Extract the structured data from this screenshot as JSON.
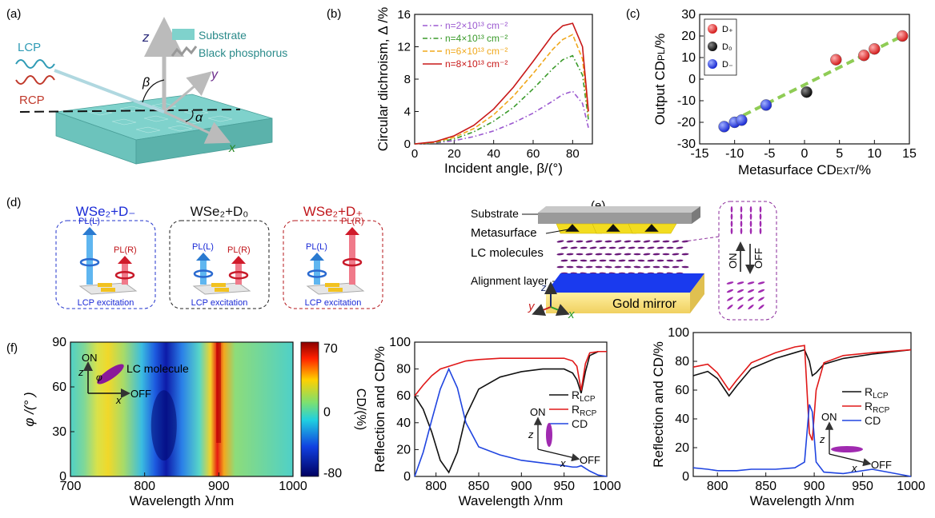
{
  "panel_labels": {
    "a": "(a)",
    "b": "(b)",
    "c": "(c)",
    "d": "(d)",
    "e": "(e)",
    "f": "(f)"
  },
  "panel_a": {
    "legend_substrate": "Substrate",
    "legend_bp": "Black phosphorus",
    "lcp": "LCP",
    "rcp": "RCP",
    "axis_z": "z",
    "axis_y": "y",
    "axis_x": "x",
    "angle_beta": "β",
    "angle_alpha": "α",
    "colors": {
      "substrate_top": "#7fd2cc",
      "substrate_front": "#5bb7b0",
      "lcp": "#2f9bb5",
      "rcp": "#c0392b"
    }
  },
  "panel_d": {
    "groups": [
      {
        "title": "WSe₂+D₋",
        "title_color": "#1a2ad6",
        "border": "#2233cc",
        "pl_l": "PL(L)",
        "pl_r": "PL(R)",
        "exc": "LCP excitation",
        "big": "L"
      },
      {
        "title": "WSe₂+D₀",
        "title_color": "#111111",
        "border": "#222222",
        "pl_l": "PL(L)",
        "pl_r": "PL(R)",
        "exc": "LCP excitation",
        "big": "none"
      },
      {
        "title": "WSe₂+D₊",
        "title_color": "#c0161b",
        "border": "#b4151a",
        "pl_l": "PL(L)",
        "pl_r": "PL(R)",
        "exc": "LCP excitation",
        "big": "R"
      }
    ]
  },
  "panel_e": {
    "substrate": "Substrate",
    "metasurface": "Metasurface",
    "lc": "LC molecules",
    "alignment": "Alignment layer",
    "mirror": "Gold mirror",
    "on": "ON",
    "off": "OFF",
    "axis_z": "z",
    "axis_y": "y",
    "axis_x": "x"
  },
  "chart_data": [
    {
      "id": "b",
      "type": "line",
      "xlabel": "Incident angle, β/(°)",
      "ylabel": "Circular dichroism, Δ /%",
      "xlim": [
        0,
        90
      ],
      "ylim": [
        0,
        16
      ],
      "xticks": [
        0,
        20,
        40,
        60,
        80
      ],
      "yticks": [
        0,
        4,
        8,
        12,
        16
      ],
      "legend_position": "top-left",
      "x": [
        0,
        10,
        20,
        30,
        40,
        50,
        60,
        70,
        75,
        80,
        85,
        88
      ],
      "series": [
        {
          "name": "n=2×10¹³ cm⁻²",
          "color": "#9b59d0",
          "dash": "6,3,1.5,3",
          "values": [
            0,
            0.1,
            0.4,
            0.9,
            1.6,
            2.6,
            3.8,
            5.3,
            6.1,
            6.5,
            5.0,
            2.0
          ]
        },
        {
          "name": "n=4×10¹³ cm⁻²",
          "color": "#3a9a2a",
          "dash": "6,3,1.5,3",
          "values": [
            0,
            0.15,
            0.6,
            1.5,
            2.8,
            4.5,
            6.8,
            9.3,
            10.4,
            10.9,
            8.5,
            3.0
          ]
        },
        {
          "name": "n=6×10¹³ cm⁻²",
          "color": "#f0a81c",
          "dash": "6,3",
          "values": [
            0,
            0.2,
            0.8,
            1.9,
            3.6,
            5.9,
            8.7,
            11.7,
            12.9,
            13.5,
            10.5,
            3.5
          ]
        },
        {
          "name": "n=8×10¹³ cm⁻²",
          "color": "#c81818",
          "dash": "",
          "values": [
            0,
            0.25,
            1.0,
            2.3,
            4.3,
            7.0,
            10.2,
            13.5,
            14.6,
            14.9,
            12.0,
            4.0
          ]
        }
      ]
    },
    {
      "id": "c",
      "type": "scatter",
      "xlabel": "Metasurface CD",
      "xlabel_sub": "EXT",
      "xlabel_tail": "/%",
      "ylabel": "Output CD",
      "ylabel_sub": "PL",
      "ylabel_tail": "/%",
      "xlim": [
        -15,
        15
      ],
      "ylim": [
        -30,
        30
      ],
      "xticks": [
        -15,
        -10,
        -5,
        0,
        5,
        10,
        15
      ],
      "yticks": [
        -30,
        -20,
        -10,
        0,
        10,
        20,
        30
      ],
      "legend_position": "top-left",
      "fit": {
        "x": [
          -12,
          14
        ],
        "y": [
          -22,
          20
        ],
        "color": "#8fcc55"
      },
      "series": [
        {
          "name": "D₊",
          "color": "#e02020",
          "x": [
            4.5,
            8.5,
            10,
            14
          ],
          "y": [
            9,
            11,
            14,
            20
          ]
        },
        {
          "name": "D₀",
          "color": "#111111",
          "x": [
            0.3
          ],
          "y": [
            -6
          ]
        },
        {
          "name": "D₋",
          "color": "#2030e0",
          "x": [
            -11.5,
            -10,
            -9,
            -5.5
          ],
          "y": [
            -22,
            -20,
            -19,
            -12
          ]
        }
      ]
    },
    {
      "id": "f1",
      "type": "heatmap",
      "xlabel": "Wavelength λ/nm",
      "ylabel": "φ /(° )",
      "xlim": [
        700,
        1000
      ],
      "ylim": [
        0,
        90
      ],
      "xticks": [
        700,
        800,
        900,
        1000
      ],
      "yticks": [
        0,
        30,
        60,
        90
      ],
      "colorbar_label": "CD/(%)",
      "colorbar_ticks": [
        70,
        0,
        -80
      ],
      "inset_on": "ON",
      "inset_off": "OFF",
      "inset_z": "z",
      "inset_x": "x",
      "inset_phi": "φ",
      "inset_lc": "LC molecule"
    },
    {
      "id": "f2",
      "type": "line",
      "xlabel": "Wavelength λ/nm",
      "ylabel": "Reflection and CD/%",
      "xlim": [
        775,
        1000
      ],
      "ylim": [
        0,
        100
      ],
      "xticks": [
        800,
        850,
        900,
        950,
        1000
      ],
      "yticks": [
        0,
        20,
        40,
        60,
        80,
        100
      ],
      "legend_position": "right",
      "inset_on": "ON",
      "inset_off": "OFF",
      "inset_z": "z",
      "inset_x": "x",
      "x": [
        775,
        785,
        795,
        805,
        815,
        825,
        835,
        850,
        875,
        900,
        925,
        950,
        960,
        965,
        970,
        975,
        980,
        990,
        1000
      ],
      "series": [
        {
          "name": "R",
          "sub": "LCP",
          "color": "#111111",
          "values": [
            60,
            50,
            33,
            12,
            3,
            18,
            45,
            65,
            74,
            78,
            80,
            80,
            77,
            72,
            62,
            78,
            90,
            93,
            93
          ]
        },
        {
          "name": "R",
          "sub": "RCP",
          "color": "#e01818",
          "values": [
            60,
            68,
            75,
            80,
            82,
            84,
            86,
            87,
            88,
            88,
            88,
            88,
            86,
            82,
            64,
            84,
            92,
            93,
            93
          ]
        },
        {
          "name": "CD",
          "sub": "",
          "color": "#2045e0",
          "values": [
            0,
            18,
            42,
            65,
            80,
            66,
            40,
            22,
            16,
            12,
            10,
            8,
            7,
            7,
            8,
            6,
            4,
            1,
            0
          ]
        }
      ]
    },
    {
      "id": "f3",
      "type": "line",
      "xlabel": "Wavelength λ/nm",
      "ylabel": "Reflection and CD/%",
      "xlim": [
        775,
        1000
      ],
      "ylim": [
        0,
        100
      ],
      "xticks": [
        800,
        850,
        900,
        950,
        1000
      ],
      "yticks": [
        0,
        20,
        40,
        60,
        80,
        100
      ],
      "legend_position": "right",
      "inset_on": "ON",
      "inset_off": "OFF",
      "inset_z": "z",
      "inset_x": "x",
      "x": [
        775,
        790,
        800,
        808,
        812,
        820,
        835,
        860,
        880,
        890,
        895,
        898,
        902,
        910,
        930,
        960,
        1000
      ],
      "series": [
        {
          "name": "R",
          "sub": "LCP",
          "color": "#111111",
          "values": [
            70,
            73,
            68,
            60,
            56,
            63,
            75,
            82,
            86,
            88,
            80,
            70,
            72,
            78,
            82,
            85,
            88
          ]
        },
        {
          "name": "R",
          "sub": "RCP",
          "color": "#e01818",
          "values": [
            76,
            78,
            72,
            64,
            60,
            67,
            79,
            86,
            90,
            91,
            30,
            25,
            60,
            79,
            84,
            86,
            88
          ]
        },
        {
          "name": "CD",
          "sub": "",
          "color": "#2045e0",
          "values": [
            6,
            5,
            4,
            4,
            4,
            4,
            5,
            5,
            6,
            10,
            50,
            45,
            10,
            3,
            2,
            5,
            0
          ]
        }
      ]
    }
  ]
}
